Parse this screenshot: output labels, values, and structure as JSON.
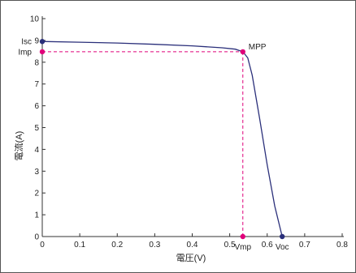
{
  "chart_data": {
    "type": "line",
    "title": "",
    "xlabel": "電圧(V)",
    "ylabel": "電流(A)",
    "xlim": [
      0,
      0.8
    ],
    "ylim": [
      0,
      10
    ],
    "x_ticks": [
      "0",
      "0.1",
      "0.2",
      "0.3",
      "0.4",
      "0.5",
      "0.6",
      "0.7",
      "0.8"
    ],
    "y_ticks": [
      "0",
      "1",
      "2",
      "3",
      "4",
      "5",
      "6",
      "7",
      "8",
      "9",
      "10"
    ],
    "grid": false,
    "series": [
      {
        "color": "#2a2f7a",
        "points": [
          [
            0,
            8.95
          ],
          [
            0.1,
            8.92
          ],
          [
            0.2,
            8.88
          ],
          [
            0.3,
            8.82
          ],
          [
            0.4,
            8.75
          ],
          [
            0.48,
            8.66
          ],
          [
            0.515,
            8.6
          ],
          [
            0.535,
            8.48
          ],
          [
            0.548,
            8.2
          ],
          [
            0.56,
            7.4
          ],
          [
            0.58,
            5.4
          ],
          [
            0.6,
            3.3
          ],
          [
            0.62,
            1.4
          ],
          [
            0.64,
            0.0
          ]
        ]
      }
    ],
    "points": {
      "isc": {
        "label": "Isc",
        "x": 0,
        "y": 8.95,
        "color": "#2a2f7a"
      },
      "mpp": {
        "label": "MPP",
        "x": 0.535,
        "y": 8.48,
        "color": "#e0007a"
      },
      "voc": {
        "label": "Voc",
        "x": 0.64,
        "y": 0.0,
        "color": "#2a2f7a"
      },
      "vmp_marker": {
        "label": "Vmp",
        "x": 0.535,
        "y": 0.0,
        "color": "#e0007a"
      },
      "imp_marker": {
        "label": "Imp",
        "x": 0,
        "y": 8.48,
        "color": "#e0007a"
      }
    },
    "reference_line_color": "#e0007a"
  }
}
